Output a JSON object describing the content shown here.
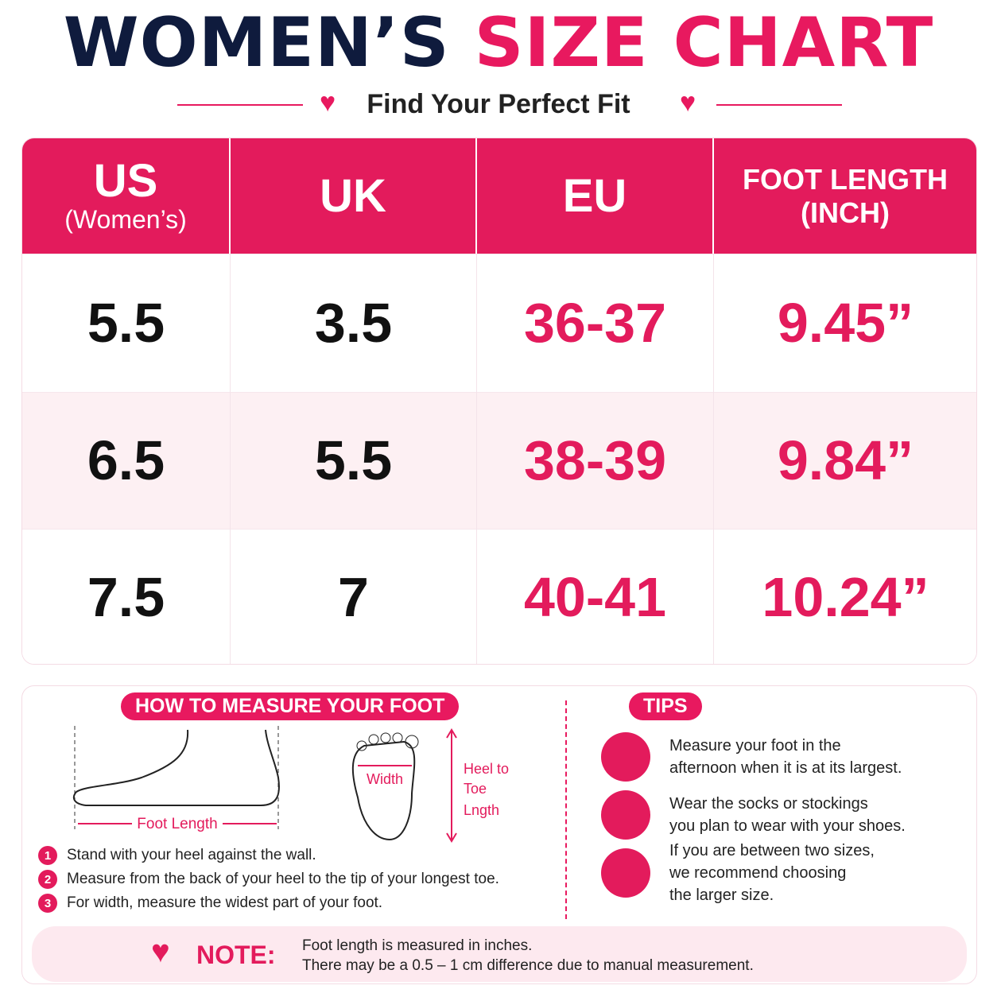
{
  "header": {
    "title_left": "WOMEN’S",
    "title_right": "SIZE CHART",
    "subtitle": "Find Your Perfect Fit"
  },
  "table": {
    "headers": [
      [
        "US",
        "(Women’s)"
      ],
      [
        "UK"
      ],
      [
        "EU"
      ],
      [
        "FOOT LENGTH",
        "(INCH)"
      ]
    ],
    "rows": [
      [
        "5.5",
        "3.5",
        "36-37",
        "9.45”"
      ],
      [
        "6.5",
        "5.5",
        "38-39",
        "9.84”"
      ],
      [
        "7.5",
        "7",
        "40-41",
        "10.24”"
      ]
    ]
  },
  "measure": {
    "title": "HOW TO MEASURE YOUR FOOT",
    "foot_length_label": "Foot Length",
    "width_label": "Width",
    "heel_to_toe_label": [
      "Heel to",
      "Toe",
      "Lngth"
    ],
    "steps": [
      {
        "number": "1",
        "text": "Stand with your heel against the wall."
      },
      {
        "number": "2",
        "text": "Measure from the back of your heel to the tip of your longest toe."
      },
      {
        "number": "3",
        "text": "For width, measure the widest part of your foot."
      }
    ]
  },
  "tips": {
    "title": "TIPS",
    "items": [
      [
        "Measure your foot in the",
        "afternoon when it is at its largest."
      ],
      [
        "Wear the socks or stockings",
        "you plan to wear with your shoes."
      ],
      [
        "If you are between two sizes,",
        "we recommend choosing",
        "the larger size."
      ]
    ]
  },
  "note": {
    "label": "NOTE:",
    "lines": [
      "Foot length is measured in inches.",
      "There may be a 0.5 – 1 cm difference due to manual measurement."
    ]
  }
}
